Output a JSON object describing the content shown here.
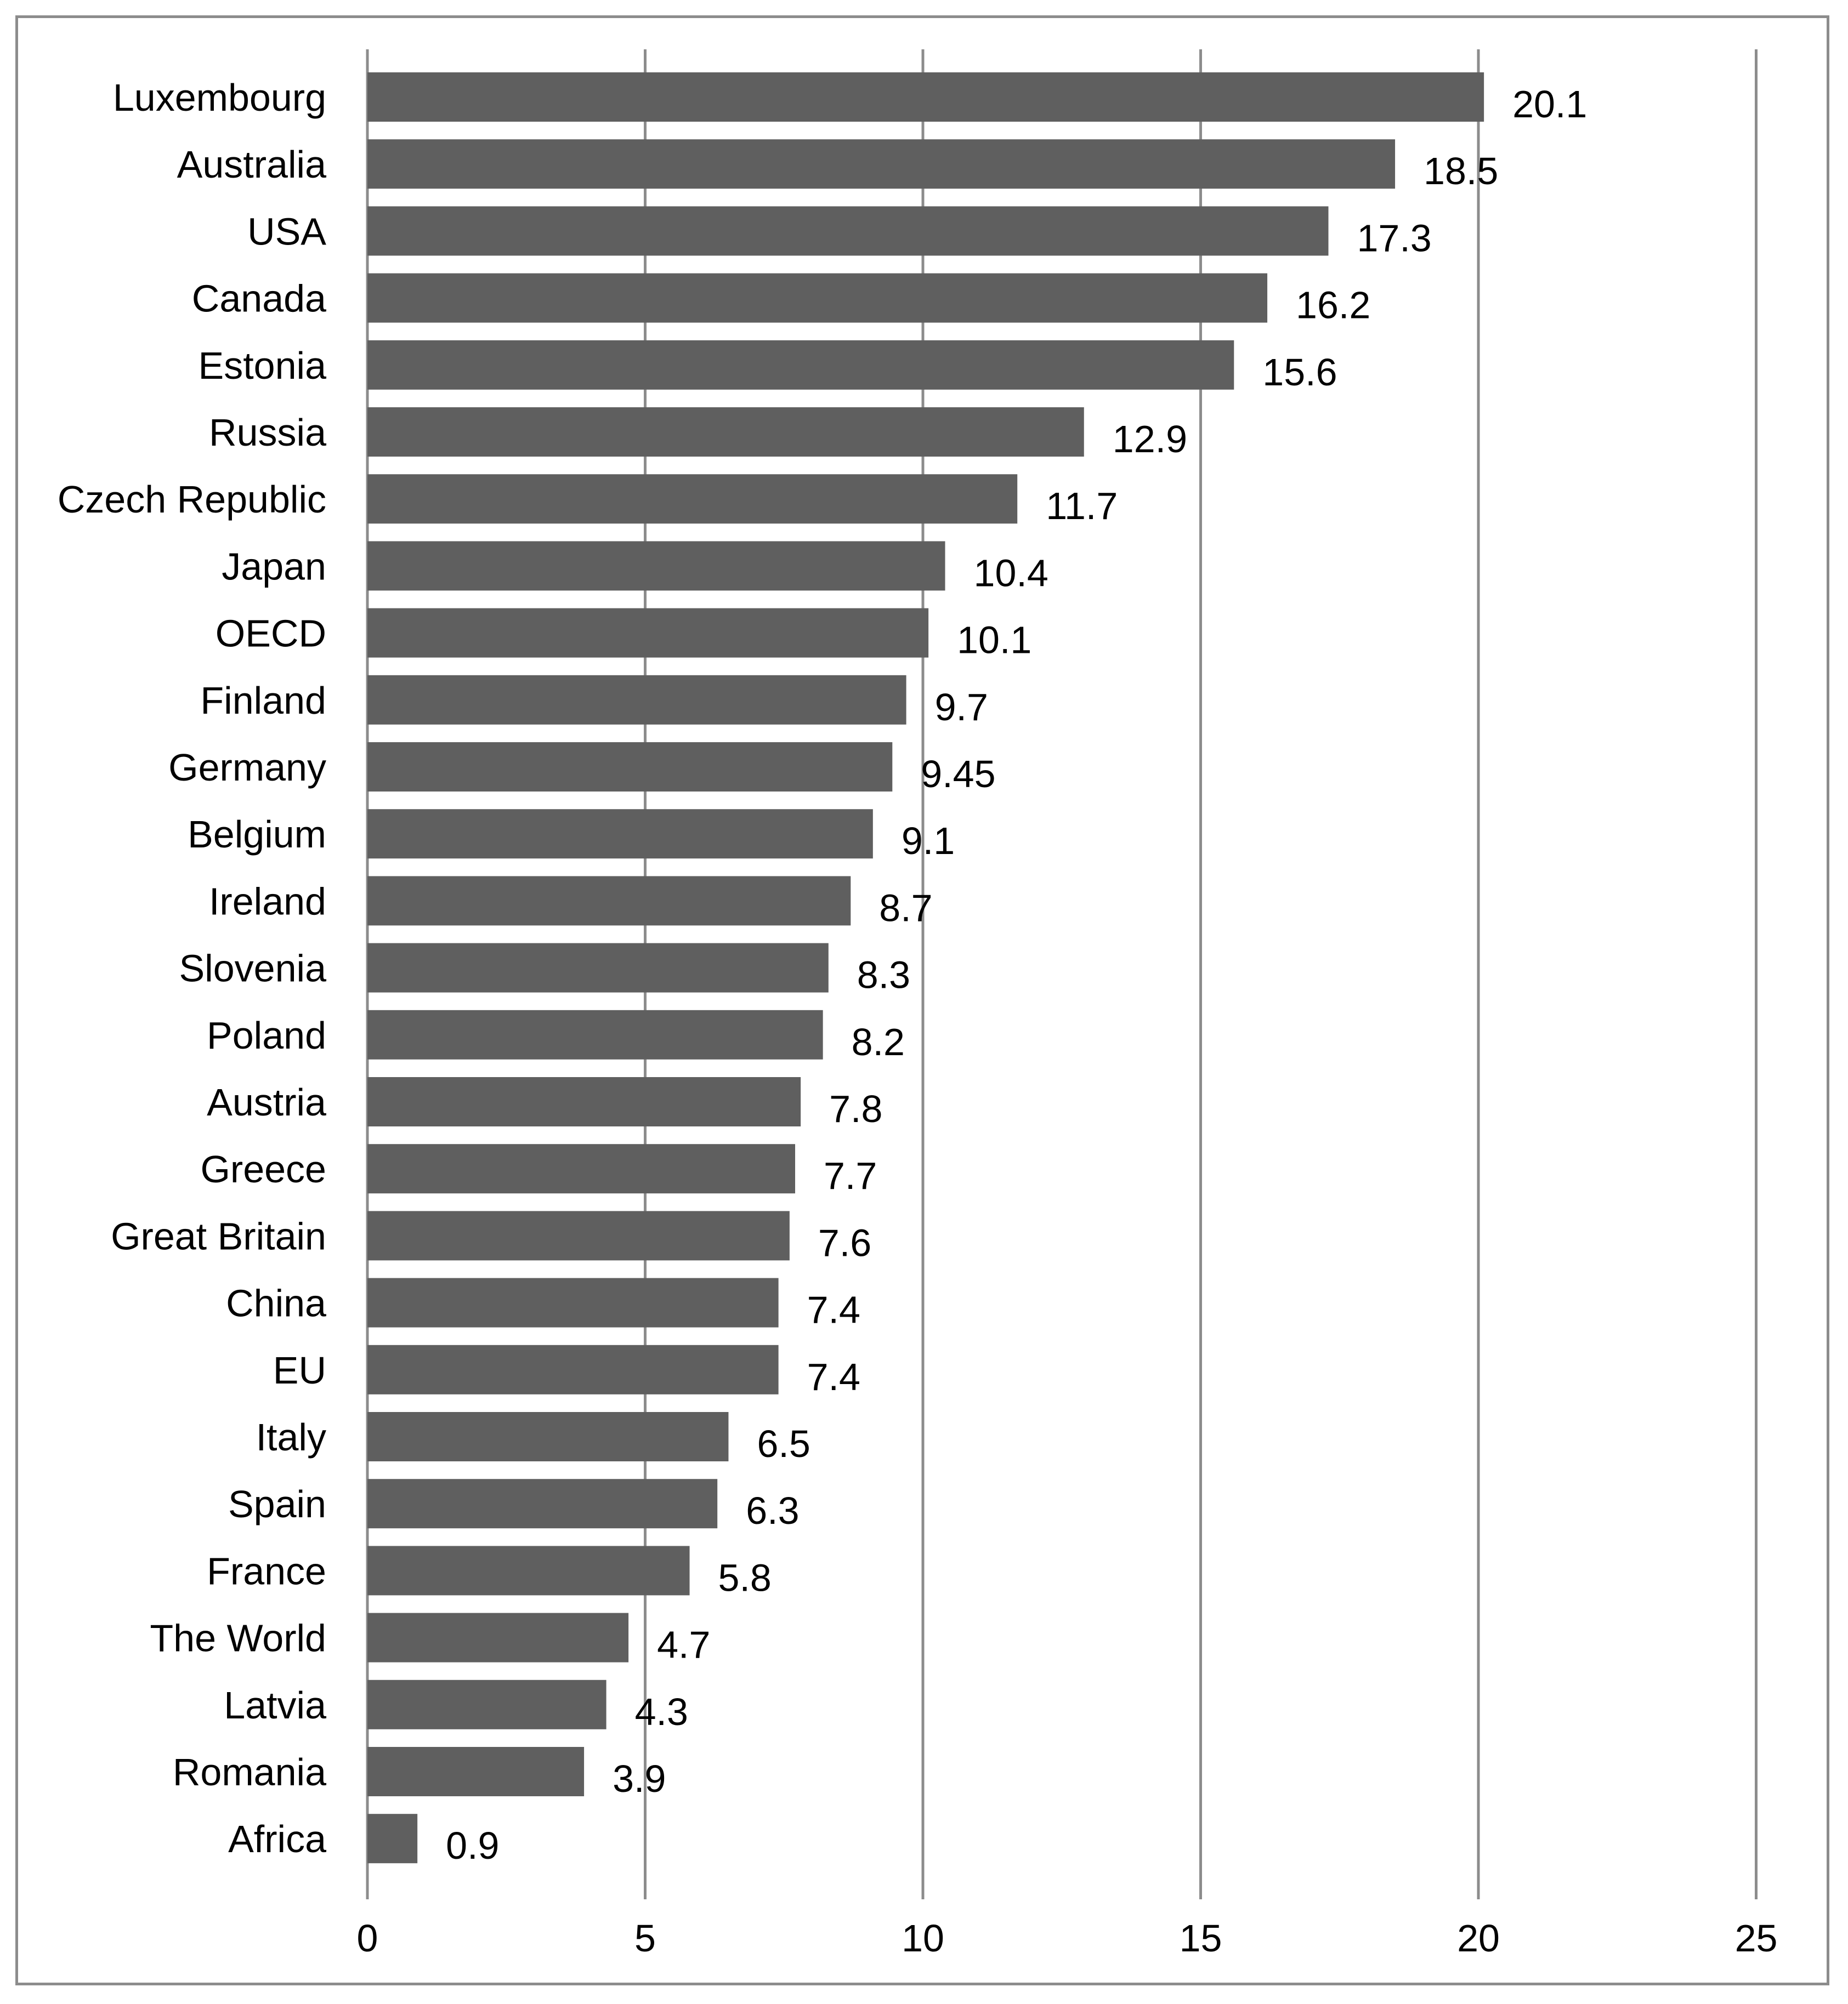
{
  "chart_data": {
    "type": "bar",
    "orientation": "horizontal",
    "title": "",
    "xlabel": "",
    "ylabel": "",
    "xlim": [
      0,
      25
    ],
    "x_ticks": [
      "0",
      "5",
      "10",
      "15",
      "20",
      "25"
    ],
    "grid": true,
    "legend": "none",
    "bar_color": "#5f5f5f",
    "grid_color": "#8c8c8c",
    "categories": [
      "Luxembourg",
      "Australia",
      "USA",
      "Canada",
      "Estonia",
      "Russia",
      "Czech Republic",
      "Japan",
      "OECD",
      "Finland",
      "Germany",
      "Belgium",
      "Ireland",
      "Slovenia",
      "Poland",
      "Austria",
      "Greece",
      "Great Britain",
      "China",
      "EU",
      "Italy",
      "Spain",
      "France",
      "The World",
      "Latvia",
      "Romania",
      "Africa"
    ],
    "values": [
      20.1,
      18.5,
      17.3,
      16.2,
      15.6,
      12.9,
      11.7,
      10.4,
      10.1,
      9.7,
      9.45,
      9.1,
      8.7,
      8.3,
      8.2,
      7.8,
      7.7,
      7.6,
      7.4,
      7.4,
      6.5,
      6.3,
      5.8,
      4.7,
      4.3,
      3.9,
      0.9
    ],
    "value_labels": [
      "20.1",
      "18.5",
      "17.3",
      "16.2",
      "15.6",
      "12.9",
      "11.7",
      "10.4",
      "10.1",
      "9.7",
      "9.45",
      "9.1",
      "8.7",
      "8.3",
      "8.2",
      "7.8",
      "7.7",
      "7.6",
      "7.4",
      "7.4",
      "6.5",
      "6.3",
      "5.8",
      "4.7",
      "4.3",
      "3.9",
      "0.9"
    ]
  }
}
